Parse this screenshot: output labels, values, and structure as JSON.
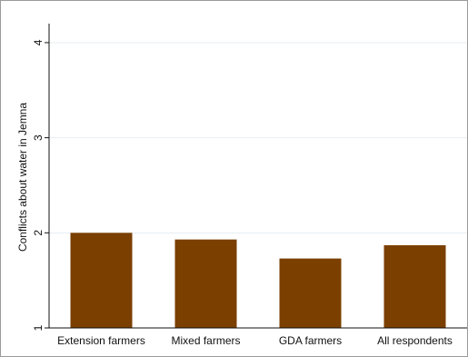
{
  "chart_data": {
    "type": "bar",
    "title": "",
    "xlabel": "",
    "ylabel": "Conflicts about water in Jemna",
    "categories": [
      "Extension farmers",
      "Mixed farmers",
      "GDA farmers",
      "All respondents"
    ],
    "values": [
      2.0,
      1.93,
      1.73,
      1.87
    ],
    "y_ticks": [
      "1",
      "2",
      "3",
      "4"
    ],
    "ylim": [
      1,
      4.2
    ],
    "grid": true,
    "bar_color": "#7b3f00",
    "grid_color": "#e6eef2",
    "axis_color": "#111111",
    "legend": "none"
  }
}
